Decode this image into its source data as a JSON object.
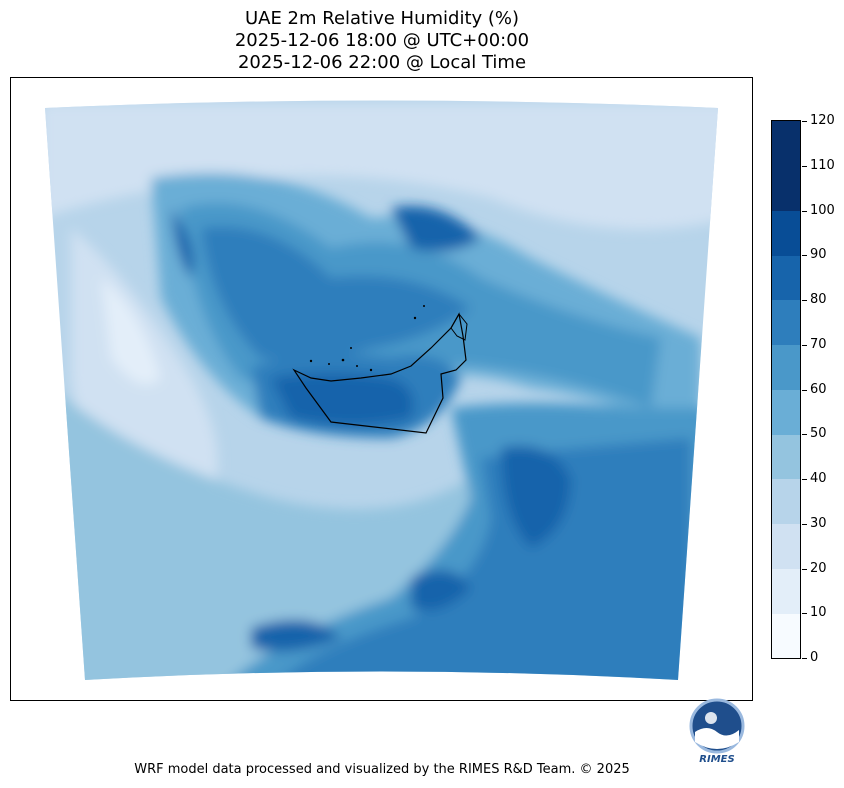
{
  "title": {
    "line1": "UAE 2m Relative Humidity (%)",
    "line2": "2025-12-06 18:00 @ UTC+00:00",
    "line3": "2025-12-06 22:00 @ Local Time"
  },
  "colorbar": {
    "ticks": [
      "0",
      "10",
      "20",
      "30",
      "40",
      "50",
      "60",
      "70",
      "80",
      "90",
      "100",
      "110",
      "120"
    ],
    "colors": [
      "#f7fbff",
      "#e3eef9",
      "#d0e1f2",
      "#b7d4ea",
      "#94c4df",
      "#6aaed6",
      "#4a98c9",
      "#2e7ebc",
      "#1764ab",
      "#084d96",
      "#08306b",
      "#08306b"
    ],
    "range": [
      0,
      120
    ],
    "step": 10
  },
  "map": {
    "region": "UAE and surrounding Arabian Peninsula",
    "palette": "Blues"
  },
  "logo": {
    "text": "RIMES"
  },
  "footer": "WRF model data processed and visualized by the RIMES R&D Team. © 2025"
}
